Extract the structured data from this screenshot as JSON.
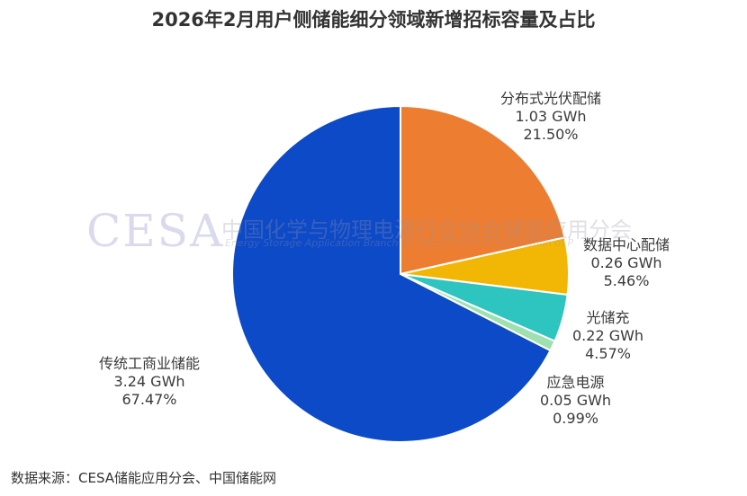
{
  "title": "2026年2月用户侧储能细分领域新增招标容量及占比",
  "source": "数据来源：CESA储能应用分会、中国储能网",
  "watermark": {
    "logo": "CESA",
    "cn": "中国化学与物理电源行业协会储能应用分会",
    "en": "Energy Storage Application Branch of China Industrial Association of P"
  },
  "chart_data": {
    "type": "pie",
    "title": "2026年2月用户侧储能细分领域新增招标容量及占比",
    "unit": "GWh",
    "slices": [
      {
        "name": "分布式光伏配储",
        "value": 1.03,
        "value_label": "1.03 GWh",
        "percent": 21.5,
        "percent_label": "21.50%",
        "color": "#ED7D31"
      },
      {
        "name": "数据中心配储",
        "value": 0.26,
        "value_label": "0.26 GWh",
        "percent": 5.46,
        "percent_label": "5.46%",
        "color": "#F2B705"
      },
      {
        "name": "光储充",
        "value": 0.22,
        "value_label": "0.22 GWh",
        "percent": 4.57,
        "percent_label": "4.57%",
        "color": "#2EC4C0"
      },
      {
        "name": "应急电源",
        "value": 0.05,
        "value_label": "0.05 GWh",
        "percent": 0.99,
        "percent_label": "0.99%",
        "color": "#9FE0B0"
      },
      {
        "name": "传统工商业储能",
        "value": 3.24,
        "value_label": "3.24 GWh",
        "percent": 67.47,
        "percent_label": "67.47%",
        "color": "#0D4AC7"
      }
    ]
  }
}
